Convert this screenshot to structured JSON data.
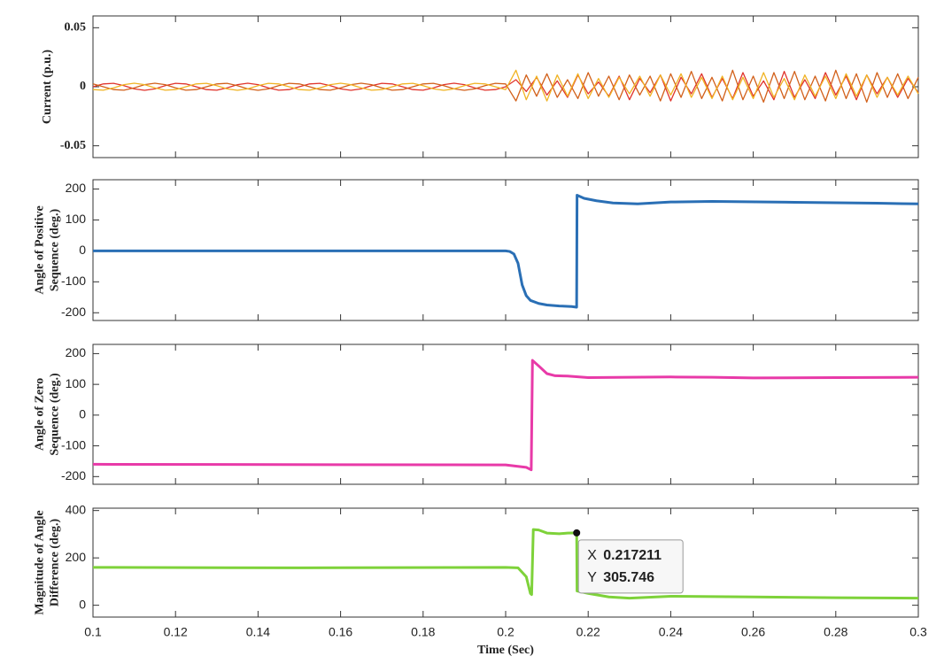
{
  "chart_data": [
    {
      "type": "line",
      "ylabel": [
        "Current (p.u.)"
      ],
      "xlim": [
        0.1,
        0.3
      ],
      "ylim": [
        -0.06,
        0.06
      ],
      "yticks": [
        0.05,
        0,
        -0.05
      ],
      "x": [
        0.1,
        0.1025,
        0.105,
        0.1075,
        0.11,
        0.1125,
        0.115,
        0.1175,
        0.12,
        0.1225,
        0.125,
        0.1275,
        0.13,
        0.1325,
        0.135,
        0.1375,
        0.14,
        0.1425,
        0.145,
        0.1475,
        0.15,
        0.1525,
        0.155,
        0.1575,
        0.16,
        0.1625,
        0.165,
        0.1675,
        0.17,
        0.1725,
        0.175,
        0.1775,
        0.18,
        0.1825,
        0.185,
        0.1875,
        0.19,
        0.1925,
        0.195,
        0.1975,
        0.2,
        0.2025,
        0.205,
        0.2075,
        0.21,
        0.2125,
        0.215,
        0.2175,
        0.22,
        0.2225,
        0.225,
        0.2275,
        0.23,
        0.2325,
        0.235,
        0.2375,
        0.24,
        0.2425,
        0.245,
        0.2475,
        0.25,
        0.2525,
        0.255,
        0.2575,
        0.26,
        0.2625,
        0.265,
        0.2675,
        0.27,
        0.2725,
        0.275,
        0.2775,
        0.28,
        0.2825,
        0.285,
        0.2875,
        0.29,
        0.2925,
        0.295,
        0.2975,
        0.3
      ],
      "series": [
        {
          "color": "#e0332b",
          "values": [
            0,
            0.0024,
            0.0029,
            0.0009,
            -0.0018,
            -0.003,
            -0.0018,
            0.0009,
            0.0029,
            0.0024,
            0,
            -0.0024,
            -0.0029,
            -0.0009,
            0.0018,
            0.003,
            0.0018,
            -0.0009,
            -0.0029,
            -0.0024,
            0,
            0.0024,
            0.0029,
            0.0009,
            -0.0018,
            -0.003,
            -0.0018,
            0.0009,
            0.0029,
            0.0024,
            0,
            -0.0024,
            -0.0029,
            -0.0009,
            0.0018,
            0.003,
            0.0018,
            -0.0009,
            -0.0029,
            -0.0024,
            0,
            0.006,
            -0.004,
            0.008,
            -0.007,
            0.005,
            -0.009,
            0.01,
            -0.006,
            0.004,
            -0.008,
            0.009,
            -0.011,
            0.007,
            -0.005,
            0.01,
            -0.012,
            0.008,
            -0.006,
            0.011,
            -0.009,
            0.007,
            -0.01,
            0.012,
            -0.008,
            0.005,
            -0.011,
            0.013,
            -0.009,
            0.006,
            -0.01,
            0.012,
            -0.007,
            0.009,
            -0.011,
            0.01,
            -0.006,
            0.008,
            -0.009,
            0.007,
            -0.005
          ]
        },
        {
          "color": "#d2601a",
          "values": [
            0.0024,
            0,
            -0.0024,
            -0.0029,
            -0.0009,
            0.0018,
            0.003,
            0.0018,
            -0.0009,
            -0.0029,
            -0.0024,
            0,
            0.0024,
            0.0029,
            0.0009,
            -0.0018,
            -0.003,
            -0.0018,
            0.0009,
            0.0029,
            0.0024,
            0,
            -0.0024,
            -0.0029,
            -0.0009,
            0.0018,
            0.003,
            0.0018,
            -0.0009,
            -0.0029,
            -0.0024,
            0,
            0.0024,
            0.0029,
            0.0009,
            -0.0018,
            -0.003,
            -0.0018,
            0.0009,
            0.0029,
            0.0024,
            -0.012,
            0.01,
            -0.008,
            0.011,
            -0.009,
            0.006,
            -0.01,
            0.012,
            -0.008,
            0.009,
            -0.011,
            0.01,
            -0.007,
            0.009,
            -0.012,
            0.011,
            -0.009,
            0.013,
            -0.01,
            0.008,
            -0.012,
            0.014,
            -0.011,
            0.009,
            -0.013,
            0.012,
            -0.01,
            0.013,
            -0.011,
            0.009,
            -0.012,
            0.014,
            -0.01,
            0.011,
            -0.013,
            0.012,
            -0.009,
            0.011,
            -0.01,
            0.008
          ]
        },
        {
          "color": "#f0b323",
          "values": [
            -0.0024,
            -0.0029,
            -0.0009,
            0.0018,
            0.003,
            0.0018,
            -0.0009,
            -0.0029,
            -0.0024,
            0,
            0.0024,
            0.0029,
            0.0009,
            -0.0018,
            -0.003,
            -0.0018,
            0.0009,
            0.0029,
            0.0024,
            0,
            -0.0024,
            -0.0029,
            -0.0009,
            0.0018,
            0.003,
            0.0018,
            -0.0009,
            -0.0029,
            -0.0024,
            0,
            0.0024,
            0.0029,
            0.0009,
            -0.0018,
            -0.003,
            -0.0018,
            0.0009,
            0.0029,
            0.0024,
            0,
            -0.0024,
            0.014,
            -0.011,
            0.009,
            -0.012,
            0.01,
            -0.008,
            0.011,
            -0.01,
            0.007,
            -0.009,
            0.008,
            -0.006,
            0.009,
            -0.008,
            0.01,
            -0.007,
            0.011,
            -0.009,
            0.008,
            -0.01,
            0.009,
            -0.011,
            0.008,
            -0.01,
            0.012,
            -0.009,
            0.007,
            -0.011,
            0.01,
            -0.008,
            0.009,
            -0.01,
            0.011,
            -0.008,
            0.01,
            -0.009,
            0.008,
            -0.007,
            0.009,
            -0.006
          ]
        }
      ]
    },
    {
      "type": "line",
      "ylabel": [
        "Angle of Positive",
        "Sequence (deg.)"
      ],
      "xlim": [
        0.1,
        0.3
      ],
      "ylim": [
        -225,
        230
      ],
      "yticks": [
        200,
        100,
        0,
        -100,
        -200
      ],
      "color": "#2a6fb5",
      "x": [
        0.1,
        0.15,
        0.2,
        0.201,
        0.202,
        0.203,
        0.204,
        0.205,
        0.206,
        0.208,
        0.21,
        0.213,
        0.216,
        0.2172,
        0.2173,
        0.219,
        0.222,
        0.226,
        0.232,
        0.24,
        0.25,
        0.27,
        0.29,
        0.3
      ],
      "values": [
        0,
        0,
        0,
        -2,
        -10,
        -40,
        -110,
        -145,
        -160,
        -170,
        -175,
        -178,
        -180,
        -182,
        180,
        170,
        162,
        155,
        152,
        158,
        160,
        157,
        154,
        152
      ]
    },
    {
      "type": "line",
      "ylabel": [
        "Angle of Zero",
        "Sequence (deg.)"
      ],
      "xlim": [
        0.1,
        0.3
      ],
      "ylim": [
        -225,
        230
      ],
      "yticks": [
        200,
        100,
        0,
        -100,
        -200
      ],
      "color": "#e83aa8",
      "x": [
        0.1,
        0.2,
        0.205,
        0.2062,
        0.2065,
        0.208,
        0.21,
        0.212,
        0.215,
        0.22,
        0.23,
        0.24,
        0.25,
        0.26,
        0.28,
        0.3
      ],
      "values": [
        -160,
        -162,
        -170,
        -178,
        178,
        160,
        135,
        128,
        127,
        122,
        123,
        124,
        123,
        121,
        122,
        123
      ]
    },
    {
      "type": "line",
      "ylabel": [
        "Magnitude of Angle",
        "Difference (deg.)"
      ],
      "xlabel": "Time (Sec)",
      "xlim": [
        0.1,
        0.3
      ],
      "ylim": [
        -50,
        410
      ],
      "yticks": [
        400,
        200,
        0
      ],
      "xticks": [
        0.1,
        0.12,
        0.14,
        0.16,
        0.18,
        0.2,
        0.22,
        0.24,
        0.26,
        0.28,
        0.3
      ],
      "color": "#7ed23a",
      "x": [
        0.1,
        0.15,
        0.2,
        0.203,
        0.205,
        0.206,
        0.2063,
        0.2067,
        0.208,
        0.21,
        0.213,
        0.215,
        0.217211,
        0.2173,
        0.22,
        0.225,
        0.23,
        0.24,
        0.26,
        0.28,
        0.3
      ],
      "values": [
        160,
        158,
        160,
        158,
        120,
        50,
        45,
        320,
        318,
        305,
        302,
        305,
        305.746,
        60,
        50,
        35,
        30,
        38,
        35,
        32,
        30
      ],
      "datatip": {
        "x_label": "X",
        "x": 0.217211,
        "y_label": "Y",
        "y": 305.746
      }
    }
  ]
}
